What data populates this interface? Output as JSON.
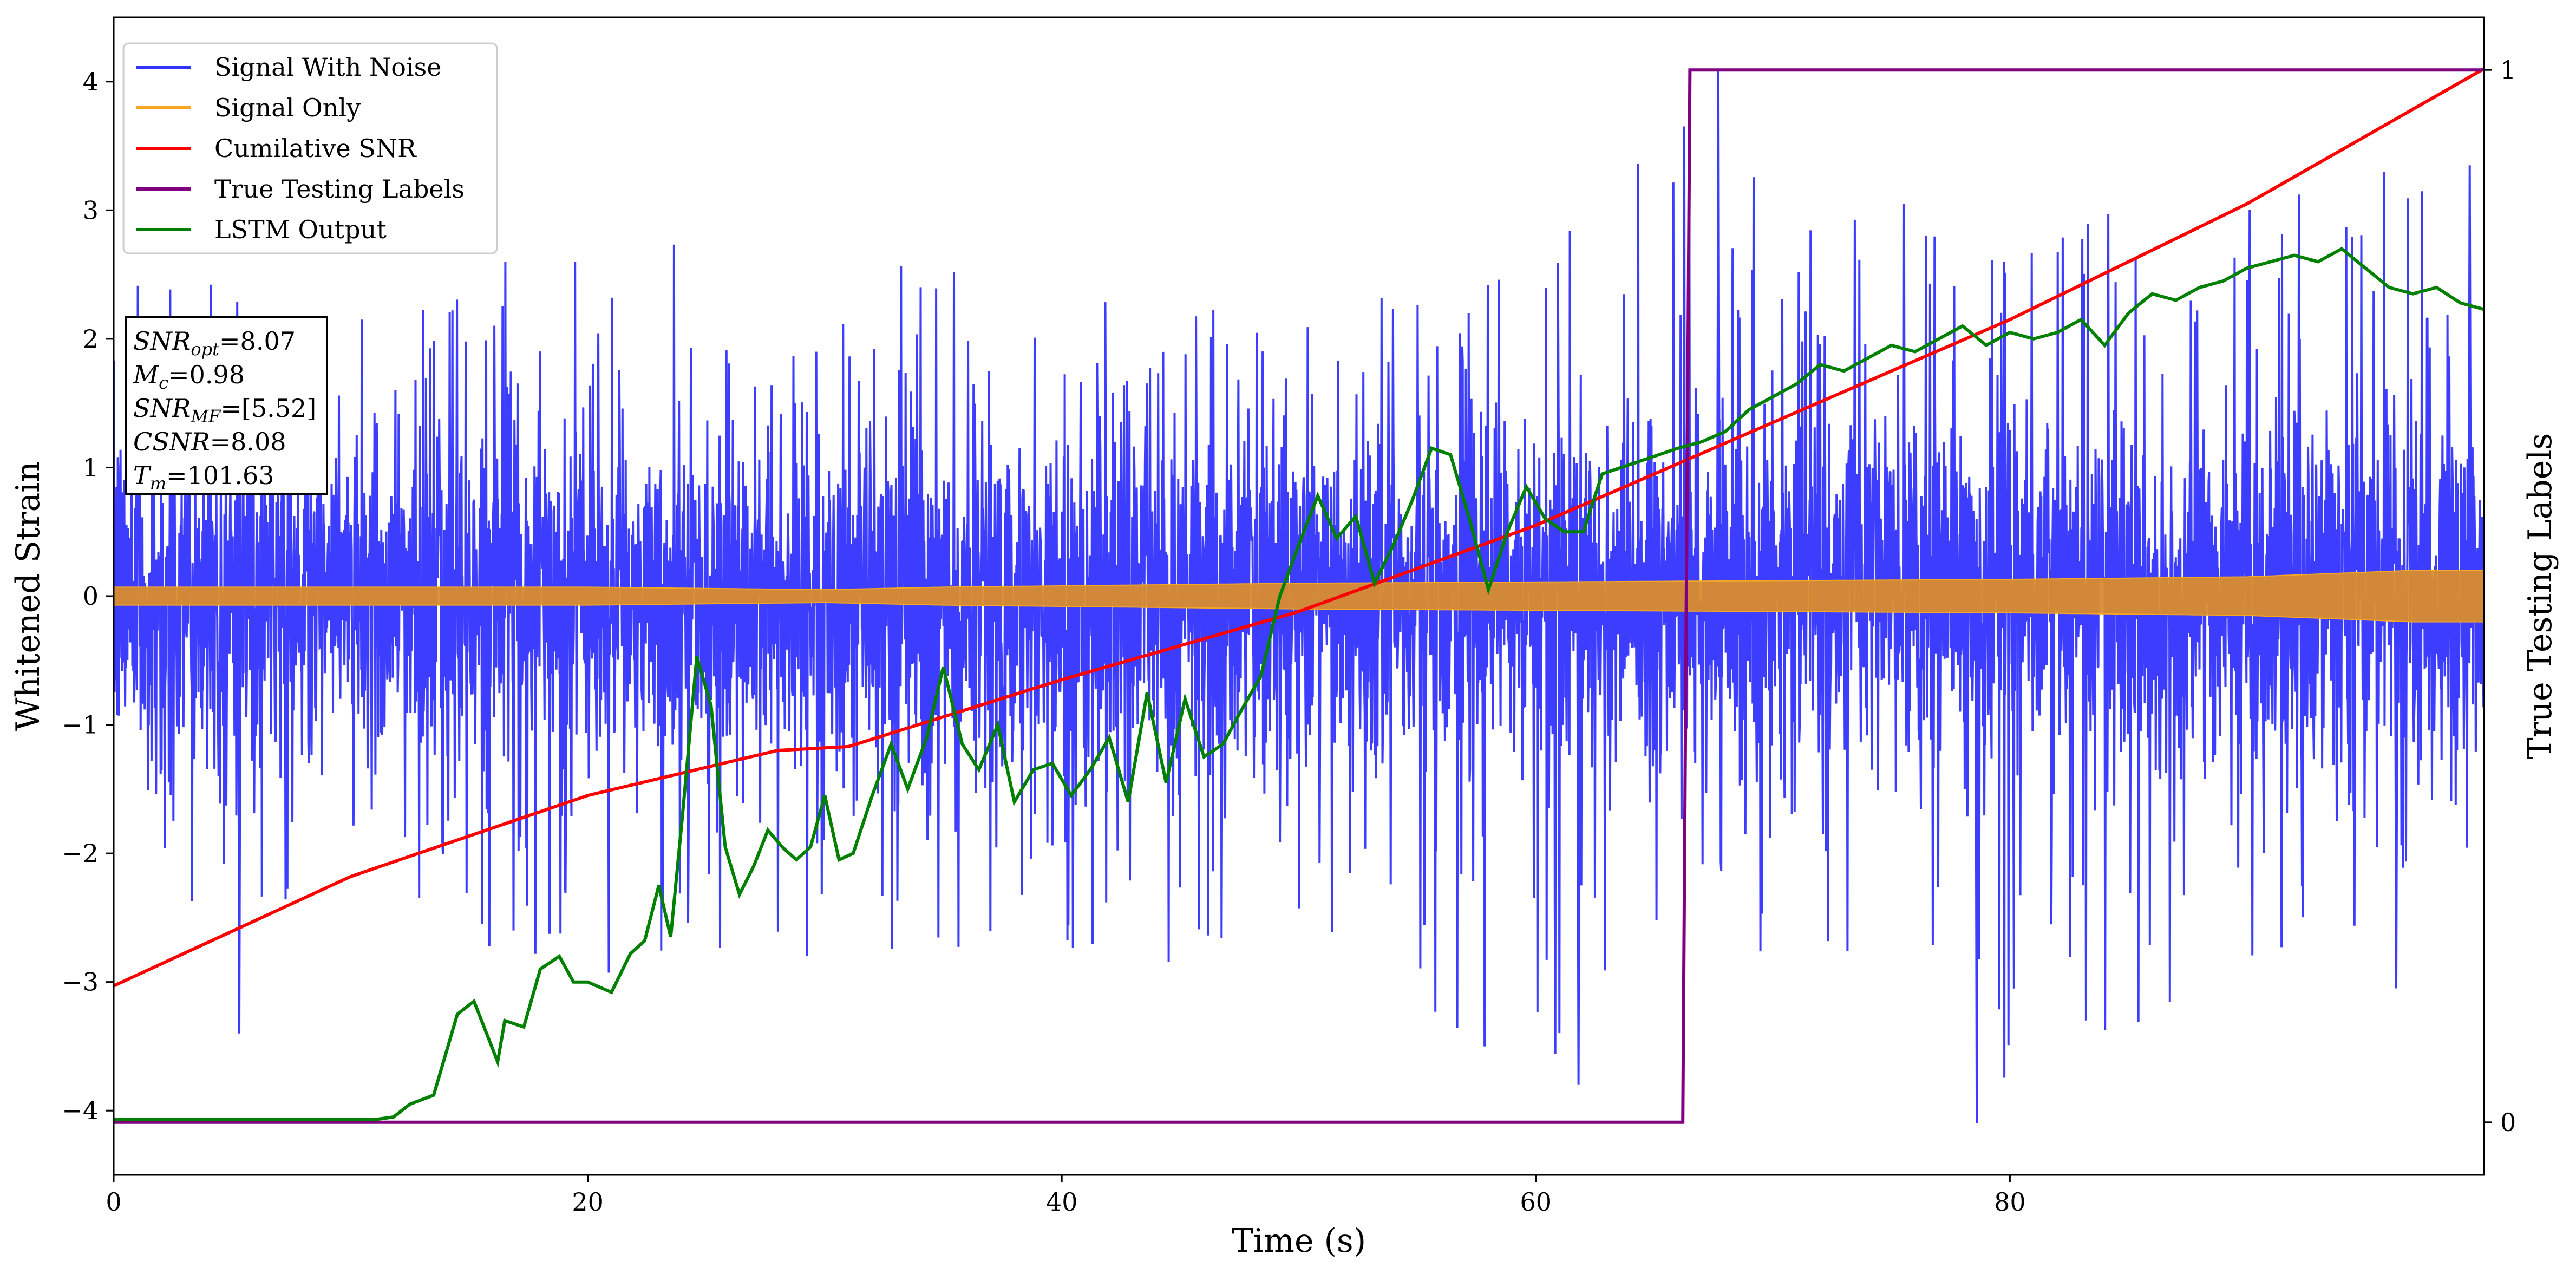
{
  "chart_data": {
    "type": "line",
    "xlabel": "Time (s)",
    "ylabel": "Whitened Strain",
    "y2label": "True Testing Labels",
    "xlim": [
      0,
      100
    ],
    "ylim": [
      -4.5,
      4.5
    ],
    "y2lim": [
      -0.05,
      1.05
    ],
    "x_ticks": [
      0,
      20,
      40,
      60,
      80
    ],
    "y_ticks": [
      -4,
      -3,
      -2,
      -1,
      0,
      1,
      2,
      3,
      4
    ],
    "y2_ticks": [
      0,
      1
    ],
    "legend_placement": "upper-left",
    "grid": false,
    "series": [
      {
        "name": "Signal With Noise",
        "color": "#3333ff",
        "style": "dense noisy trace, envelope approx",
        "envelope_x": [
          0,
          10,
          20,
          30,
          40,
          50,
          60,
          67.7,
          70,
          80,
          90,
          98,
          100
        ],
        "envelope_upper": [
          2.6,
          2.2,
          2.9,
          2.6,
          2.5,
          2.6,
          2.6,
          4.1,
          3.0,
          3.1,
          3.2,
          3.4,
          2.0
        ],
        "envelope_lower": [
          -2.5,
          -2.6,
          -3.0,
          -2.8,
          -2.8,
          -2.9,
          -3.8,
          -2.5,
          -2.9,
          -4.1,
          -3.0,
          -2.6,
          -1.6
        ],
        "typical_band": 1.2
      },
      {
        "name": "Signal Only",
        "color": "#f5a623",
        "style": "filled oscillation band",
        "band_x": [
          0,
          20,
          30,
          35,
          40,
          50,
          60,
          70,
          80,
          90,
          97,
          100
        ],
        "band_amplitude": [
          0.07,
          0.07,
          0.05,
          0.07,
          0.08,
          0.1,
          0.11,
          0.12,
          0.13,
          0.15,
          0.2,
          0.2
        ]
      },
      {
        "name": "Cumilative SNR",
        "color": "#ff0000",
        "x": [
          0,
          10,
          20,
          28,
          30,
          31,
          40,
          50,
          60,
          70,
          80,
          90,
          100
        ],
        "y": [
          -3.03,
          -2.18,
          -1.55,
          -1.2,
          -1.18,
          -1.17,
          -0.65,
          -0.12,
          0.55,
          1.35,
          2.15,
          3.05,
          4.1
        ]
      },
      {
        "name": "True Testing Labels",
        "color": "#800080",
        "axis": "right",
        "x": [
          0,
          66.2,
          66.5,
          100
        ],
        "y": [
          0,
          0,
          1,
          1
        ]
      },
      {
        "name": "LSTM Output",
        "color": "#008000",
        "x": [
          0,
          11,
          11.8,
          12.5,
          13.5,
          14.5,
          15.2,
          16.2,
          16.5,
          17.3,
          18.0,
          18.8,
          19.4,
          20.0,
          21.0,
          21.8,
          22.4,
          23.0,
          23.5,
          24.0,
          24.6,
          25.2,
          25.8,
          26.4,
          27.0,
          27.6,
          28.2,
          28.8,
          29.4,
          30.0,
          30.6,
          31.2,
          32.0,
          32.8,
          33.5,
          34.3,
          35.0,
          35.8,
          36.5,
          37.3,
          38.0,
          38.8,
          39.6,
          40.4,
          41.2,
          42.0,
          42.8,
          43.6,
          44.4,
          45.2,
          46.0,
          46.8,
          47.6,
          48.4,
          49.2,
          50.0,
          50.8,
          51.6,
          52.4,
          53.2,
          54.0,
          54.8,
          55.6,
          56.4,
          57.2,
          58.0,
          58.8,
          59.6,
          60.4,
          61.2,
          62.0,
          62.8,
          63.6,
          64.4,
          65.2,
          66.0,
          67.0,
          68.0,
          69.0,
          70.0,
          71.0,
          72.0,
          73.0,
          74.0,
          75.0,
          76.0,
          77.0,
          78.0,
          79.0,
          80.0,
          81.0,
          82.0,
          83.0,
          84.0,
          85.0,
          86.0,
          87.0,
          88.0,
          89.0,
          90.0,
          91.0,
          92.0,
          93.0,
          94.0,
          95.0,
          96.0,
          97.0,
          98.0,
          99.0,
          100.0
        ],
        "y": [
          -4.07,
          -4.07,
          -4.05,
          -3.95,
          -3.88,
          -3.25,
          -3.15,
          -3.62,
          -3.3,
          -3.35,
          -2.9,
          -2.8,
          -3.0,
          -3.0,
          -3.08,
          -2.78,
          -2.68,
          -2.25,
          -2.65,
          -1.7,
          -0.47,
          -0.85,
          -1.95,
          -2.32,
          -2.1,
          -1.82,
          -1.95,
          -2.05,
          -1.95,
          -1.55,
          -2.05,
          -2.0,
          -1.55,
          -1.15,
          -1.5,
          -1.1,
          -0.55,
          -1.15,
          -1.35,
          -1.0,
          -1.6,
          -1.35,
          -1.3,
          -1.55,
          -1.35,
          -1.1,
          -1.6,
          -0.75,
          -1.45,
          -0.8,
          -1.25,
          -1.15,
          -0.88,
          -0.62,
          0.0,
          0.4,
          0.78,
          0.45,
          0.62,
          0.1,
          0.4,
          0.75,
          1.15,
          1.1,
          0.6,
          0.05,
          0.5,
          0.85,
          0.6,
          0.5,
          0.5,
          0.95,
          1.0,
          1.05,
          1.1,
          1.15,
          1.2,
          1.28,
          1.45,
          1.55,
          1.65,
          1.8,
          1.75,
          1.85,
          1.95,
          1.9,
          2.0,
          2.1,
          1.95,
          2.05,
          2.0,
          2.05,
          2.15,
          1.95,
          2.2,
          2.35,
          2.3,
          2.4,
          2.45,
          2.55,
          2.6,
          2.65,
          2.6,
          2.7,
          2.55,
          2.4,
          2.35,
          2.4,
          2.28,
          2.23
        ]
      }
    ],
    "annotation": {
      "lines": [
        {
          "var": "SNR",
          "sub": "opt",
          "value": "=8.07"
        },
        {
          "var": "M",
          "sub": "c",
          "value": "=0.98"
        },
        {
          "var": "SNR",
          "sub": "MF",
          "value": "=[5.52]"
        },
        {
          "var": "CSNR",
          "sub": "",
          "value": "=8.08"
        },
        {
          "var": "T",
          "sub": "m",
          "value": "=101.63"
        }
      ]
    }
  }
}
